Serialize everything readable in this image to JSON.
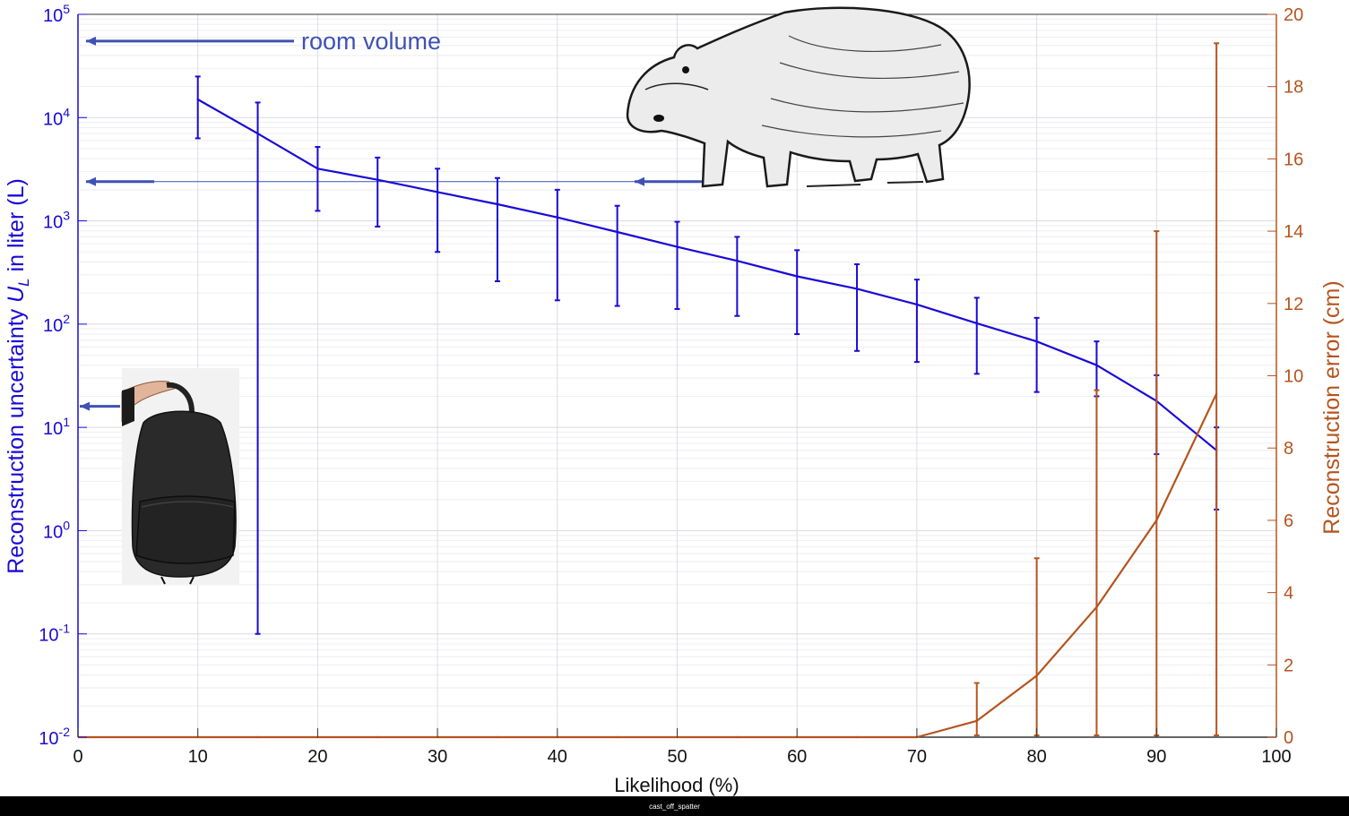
{
  "chart_data": {
    "type": "line",
    "xlabel": "Likelihood (%)",
    "ylabel_left_parts": [
      "Reconstruction uncertainty ",
      "U",
      "L",
      "  in liter (L)"
    ],
    "ylabel_right": "Reconstruction error (cm)",
    "xlim": [
      0,
      100
    ],
    "x_ticks": [
      0,
      10,
      20,
      30,
      40,
      50,
      60,
      70,
      80,
      90,
      100
    ],
    "y_left_scale": "log",
    "y_left_lim": [
      0.01,
      100000
    ],
    "y_left_tick_exponents": [
      -2,
      -1,
      0,
      1,
      2,
      3,
      4,
      5
    ],
    "y_right_lim": [
      0,
      20
    ],
    "y_right_ticks": [
      0,
      2,
      4,
      6,
      8,
      10,
      12,
      14,
      16,
      18,
      20
    ],
    "grid": true,
    "series": [
      {
        "axis": "left",
        "color": "#1a0ad6",
        "x": [
          10,
          15,
          20,
          25,
          30,
          35,
          40,
          45,
          50,
          55,
          60,
          65,
          70,
          75,
          80,
          85,
          90,
          95
        ],
        "y": [
          15000,
          7000,
          3200,
          2500,
          1900,
          1450,
          1080,
          780,
          560,
          410,
          290,
          220,
          155,
          102,
          68,
          40,
          18,
          6
        ],
        "y_upper": [
          25000,
          14000,
          5200,
          4100,
          3200,
          2600,
          2000,
          1400,
          980,
          700,
          520,
          380,
          270,
          180,
          115,
          68,
          32,
          10
        ],
        "y_lower": [
          6300,
          0.1,
          1250,
          880,
          500,
          260,
          170,
          150,
          140,
          120,
          80,
          55,
          43,
          33,
          22,
          20,
          5.5,
          1.6
        ]
      },
      {
        "axis": "right",
        "color": "#b5541e",
        "x": [
          10,
          15,
          20,
          25,
          30,
          35,
          40,
          45,
          50,
          55,
          60,
          65,
          70,
          75,
          80,
          85,
          90,
          95
        ],
        "y": [
          0,
          0,
          0,
          0,
          0,
          0,
          0,
          0,
          0,
          0,
          0,
          0,
          0,
          0.45,
          1.7,
          3.6,
          6.0,
          9.5
        ],
        "y_upper": [
          0,
          0,
          0,
          0,
          0,
          0,
          0,
          0,
          0,
          0,
          0,
          0,
          0,
          1.5,
          4.95,
          9.6,
          14.0,
          19.2
        ],
        "y_lower": [
          0,
          0,
          0,
          0,
          0,
          0,
          0,
          0,
          0,
          0,
          0,
          0,
          0,
          0.05,
          0.05,
          0.05,
          0.05,
          0.05
        ]
      }
    ],
    "annotations": [
      {
        "text": "room volume",
        "points_to_value": 55000,
        "color": "#3f51b5"
      },
      {
        "text": "",
        "points_to_value": 2400,
        "color": "#3f51b5",
        "image": "hippo-illustration"
      },
      {
        "text": "",
        "points_to_value": 16,
        "color": "#3f51b5",
        "image": "backpack-photo"
      }
    ]
  },
  "footer": {
    "text": "cast_off_spatter"
  }
}
